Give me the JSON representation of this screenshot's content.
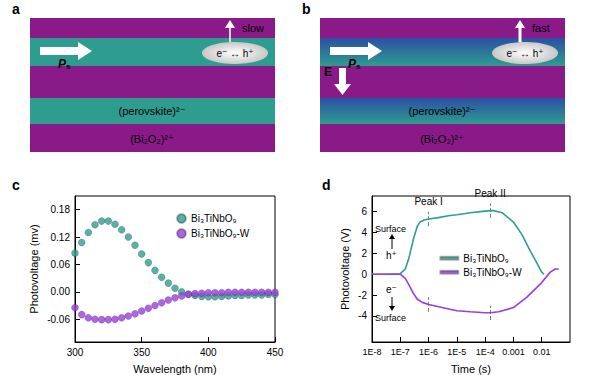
{
  "diagrams": [
    {
      "panel": "a",
      "speed": "slow",
      "polarization": "P",
      "polarization_sub": "s",
      "pair": "e⁻ ↔ h⁺",
      "layer_perovskite": "(perovskite)²⁻",
      "layer_bi2o2": "(Bi₂O₂)²⁺"
    },
    {
      "panel": "b",
      "speed": "fast",
      "polarization": "P",
      "polarization_sub": "s",
      "pair": "e⁻ ↔ h⁺",
      "layer_perovskite": "(perovskite)²⁻",
      "layer_bi2o2": "(Bi₂O₂)²⁺",
      "field": "E"
    }
  ],
  "chart_data": [
    {
      "panel": "c",
      "type": "scatter",
      "x_label": "Wavelength (nm)",
      "y_label": "Photovoltage (mv)",
      "x": [
        300,
        305,
        310,
        315,
        320,
        325,
        330,
        335,
        340,
        345,
        350,
        355,
        360,
        365,
        370,
        375,
        380,
        385,
        390,
        395,
        400,
        405,
        410,
        415,
        420,
        425,
        430,
        435,
        440,
        445,
        450
      ],
      "series": [
        {
          "name": "Bi₃TiNbO₉",
          "color": "#2f9e8f",
          "values": [
            0.085,
            0.108,
            0.13,
            0.147,
            0.155,
            0.155,
            0.148,
            0.136,
            0.12,
            0.102,
            0.083,
            0.064,
            0.047,
            0.032,
            0.019,
            0.008,
            0.0,
            -0.005,
            -0.008,
            -0.01,
            -0.011,
            -0.011,
            -0.01,
            -0.009,
            -0.008,
            -0.008,
            -0.007,
            -0.007,
            -0.007,
            -0.006,
            -0.006
          ]
        },
        {
          "name": "Bi₃TiNbO₉-W",
          "color": "#9b3de0",
          "values": [
            -0.035,
            -0.05,
            -0.057,
            -0.06,
            -0.061,
            -0.061,
            -0.06,
            -0.057,
            -0.053,
            -0.048,
            -0.042,
            -0.036,
            -0.03,
            -0.024,
            -0.018,
            -0.013,
            -0.009,
            -0.006,
            -0.004,
            -0.003,
            -0.002,
            -0.002,
            -0.002,
            -0.001,
            -0.001,
            -0.001,
            -0.001,
            -0.001,
            -0.001,
            -0.001,
            -0.001
          ]
        }
      ],
      "xlim": [
        300,
        450
      ],
      "xticks": [
        300,
        350,
        400,
        450
      ],
      "ylim": [
        -0.11,
        0.21
      ],
      "yticks": [
        -0.06,
        {
          "value": 0,
          "label": "0.00"
        },
        0.06,
        0.12,
        0.18
      ],
      "marker": "circle",
      "legend": "top-right",
      "grid": false
    },
    {
      "panel": "d",
      "type": "line",
      "x_label": "Time (s)",
      "y_label": "Photovoltage (V)",
      "log": "x",
      "series": [
        {
          "name": "Bi₃TiNbO₉",
          "color": "#2f9e8f",
          "x": [
            1e-08,
            3e-08,
            1e-07,
            1.5e-07,
            2e-07,
            3e-07,
            4e-07,
            5e-07,
            7e-07,
            1e-06,
            2e-06,
            5e-06,
            1e-05,
            3e-05,
            0.0001,
            0.00015,
            0.0002,
            0.0004,
            0.001,
            0.002,
            0.004,
            0.007,
            0.01,
            0.012
          ],
          "values": [
            0,
            0,
            0.05,
            0.5,
            1.5,
            3.5,
            4.6,
            5.0,
            5.2,
            5.3,
            5.4,
            5.6,
            5.7,
            5.9,
            6.05,
            6.1,
            6.1,
            5.9,
            5.0,
            3.8,
            2.2,
            1.0,
            0.2,
            0
          ]
        },
        {
          "name": "Bi₃TiNbO₉-W",
          "color": "#9b3de0",
          "x": [
            1e-08,
            3e-08,
            1e-07,
            1.5e-07,
            2e-07,
            3e-07,
            4e-07,
            6e-07,
            1e-06,
            3e-06,
            1e-05,
            3e-05,
            0.0001,
            0.00015,
            0.0003,
            0.001,
            0.003,
            0.01,
            0.02,
            0.03,
            0.04
          ],
          "values": [
            0,
            0,
            0,
            -0.4,
            -1.0,
            -1.9,
            -2.4,
            -2.7,
            -2.9,
            -3.2,
            -3.5,
            -3.6,
            -3.7,
            -3.7,
            -3.6,
            -3.2,
            -2.2,
            -0.8,
            0.2,
            0.5,
            0.5
          ]
        }
      ],
      "xlim": [
        1e-08,
        0.1
      ],
      "xticks": [
        {
          "value": 1e-08,
          "label": "1E-8"
        },
        {
          "value": 1e-07,
          "label": "1E-7"
        },
        {
          "value": 1e-06,
          "label": "1E-6"
        },
        {
          "value": 1e-05,
          "label": "1E-5"
        },
        {
          "value": 0.0001,
          "label": "1E-4"
        },
        0.001,
        0.01
      ],
      "ylim": [
        -6.5,
        7.5
      ],
      "yticks": [
        -4,
        -2,
        0,
        2,
        4,
        6
      ],
      "peaks": [
        {
          "label": "Peak I",
          "x": 1e-06
        },
        {
          "label": "Peak II",
          "x": 0.00015
        }
      ],
      "annotations": [
        {
          "carrier": "h⁺",
          "site": "Surface"
        },
        {
          "carrier": "e⁻",
          "site": "Surface"
        }
      ],
      "marker": "none",
      "line_style": "solid",
      "legend": "center",
      "grid": false
    }
  ]
}
